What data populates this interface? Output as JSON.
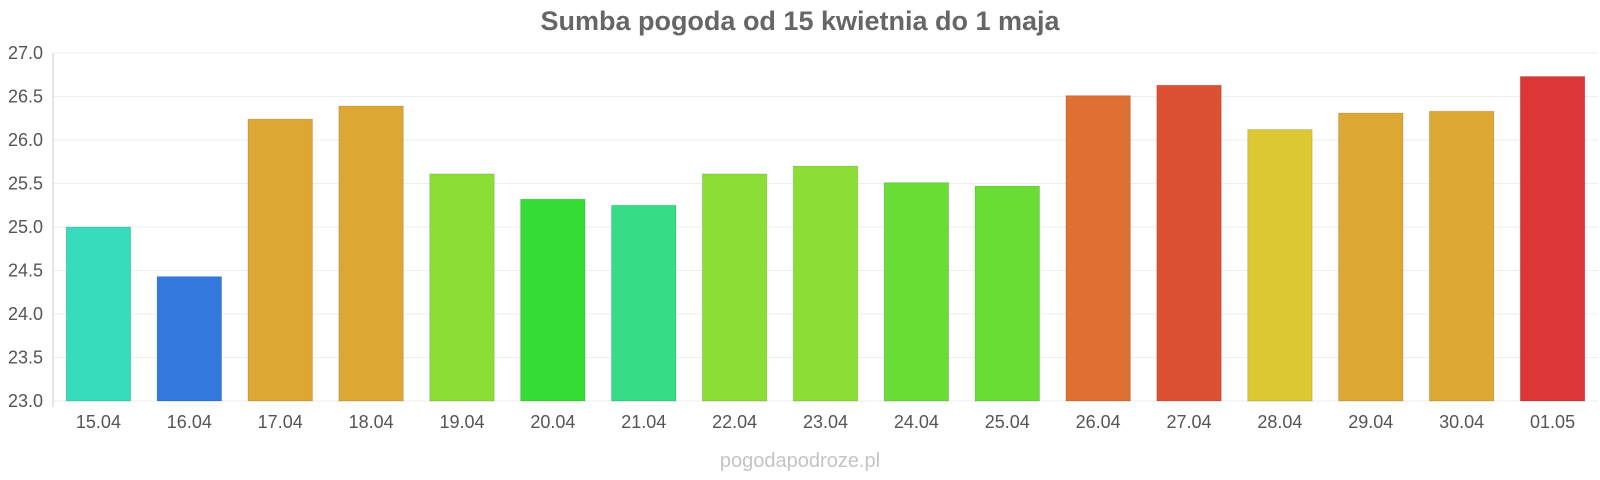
{
  "chart_data": {
    "type": "bar",
    "title": "Sumba pogoda od 15 kwietnia do 1 maja",
    "xlabel": "",
    "ylabel": "",
    "ylim": [
      23.0,
      27.0
    ],
    "yticks": [
      "23.0",
      "23.5",
      "24.0",
      "24.5",
      "25.0",
      "25.5",
      "26.0",
      "26.5",
      "27.0"
    ],
    "grid": true,
    "legend": "none",
    "categories": [
      "15.04",
      "16.04",
      "17.04",
      "18.04",
      "19.04",
      "20.04",
      "21.04",
      "22.04",
      "23.04",
      "24.04",
      "25.04",
      "26.04",
      "27.04",
      "28.04",
      "29.04",
      "30.04",
      "01.05"
    ],
    "values": [
      25.0,
      24.43,
      26.24,
      26.39,
      25.61,
      25.32,
      25.25,
      25.61,
      25.7,
      25.51,
      25.47,
      26.51,
      26.63,
      26.12,
      26.31,
      26.33,
      26.73
    ],
    "colors": [
      "#36dcbc",
      "#3478de",
      "#dda733",
      "#dda733",
      "#8ade36",
      "#36dc36",
      "#36dc86",
      "#8ade36",
      "#8ade36",
      "#6adc36",
      "#6adc36",
      "#de7033",
      "#dc5033",
      "#dcc833",
      "#dda733",
      "#dda733",
      "#dc3636"
    ]
  },
  "watermark": "pogodapodroze.pl"
}
